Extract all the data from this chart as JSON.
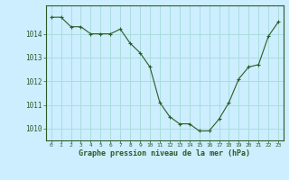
{
  "x": [
    0,
    1,
    2,
    3,
    4,
    5,
    6,
    7,
    8,
    9,
    10,
    11,
    12,
    13,
    14,
    15,
    16,
    17,
    18,
    19,
    20,
    21,
    22,
    23
  ],
  "y": [
    1014.7,
    1014.7,
    1014.3,
    1014.3,
    1014.0,
    1014.0,
    1014.0,
    1014.2,
    1013.6,
    1013.2,
    1012.6,
    1011.1,
    1010.5,
    1010.2,
    1010.2,
    1009.9,
    1009.9,
    1010.4,
    1011.1,
    1012.1,
    1012.6,
    1012.7,
    1013.9,
    1014.5
  ],
  "line_color": "#2d5a27",
  "marker": "+",
  "bg_color": "#cceeff",
  "grid_color": "#aadddd",
  "xlabel": "Graphe pression niveau de la mer (hPa)",
  "xlabel_color": "#2d5a27",
  "tick_color": "#2d5a27",
  "axis_color": "#2d5a27",
  "ylim": [
    1009.5,
    1015.2
  ],
  "yticks": [
    1010,
    1011,
    1012,
    1013,
    1014
  ],
  "xlim": [
    -0.5,
    23.5
  ],
  "xticks": [
    0,
    1,
    2,
    3,
    4,
    5,
    6,
    7,
    8,
    9,
    10,
    11,
    12,
    13,
    14,
    15,
    16,
    17,
    18,
    19,
    20,
    21,
    22,
    23
  ]
}
